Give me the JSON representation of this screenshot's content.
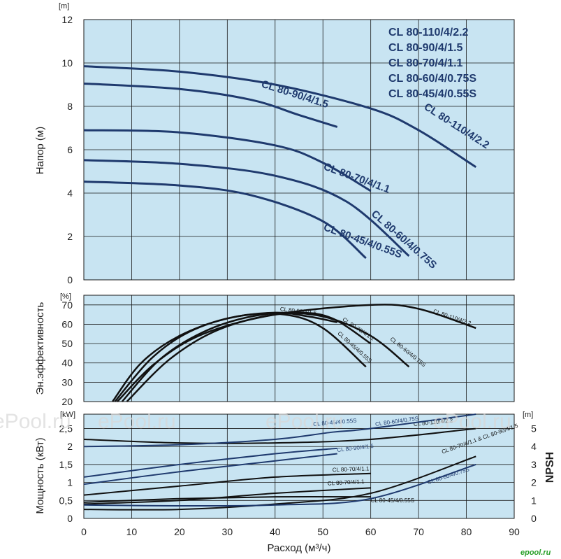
{
  "chart_data": [
    {
      "type": "line",
      "ylabel": "Напор (м)",
      "yunit": "[m]",
      "xlim": [
        0,
        90
      ],
      "ylim": [
        0,
        12
      ],
      "yticks": [
        0,
        2,
        4,
        6,
        8,
        10,
        12
      ],
      "grid": true,
      "legend": [
        "CL 80-110/4/2.2",
        "CL 80-90/4/1.5",
        "CL 80-70/4/1.1",
        "CL 80-60/4/0.75S",
        "CL 80-45/4/0.55S"
      ],
      "legend_position": "top-right",
      "series": [
        {
          "name": "CL 80-110/4/2.2",
          "points": [
            [
              0,
              9.85
            ],
            [
              20,
              9.6
            ],
            [
              40,
              9.0
            ],
            [
              60,
              7.9
            ],
            [
              70,
              6.9
            ],
            [
              82,
              5.2
            ]
          ],
          "label_at": [
            [
              71,
              7.9
            ]
          ]
        },
        {
          "name": "CL 80-90/4/1.5",
          "points": [
            [
              0,
              9.05
            ],
            [
              20,
              8.8
            ],
            [
              35,
              8.3
            ],
            [
              45,
              7.6
            ],
            [
              53,
              7.05
            ]
          ],
          "label_at": [
            [
              37,
              8.9
            ]
          ]
        },
        {
          "name": "CL 80-70/4/1.1",
          "points": [
            [
              0,
              6.9
            ],
            [
              20,
              6.8
            ],
            [
              40,
              6.2
            ],
            [
              50,
              5.4
            ],
            [
              60,
              4.1
            ]
          ],
          "label_at": [
            [
              50,
              5.1
            ]
          ]
        },
        {
          "name": "CL 80-60/4/0.75S",
          "points": [
            [
              0,
              5.52
            ],
            [
              20,
              5.35
            ],
            [
              40,
              4.8
            ],
            [
              55,
              3.6
            ],
            [
              68,
              1.1
            ]
          ],
          "label_at": [
            [
              60,
              3.0
            ]
          ]
        },
        {
          "name": "CL 80-45/4/0.55S",
          "points": [
            [
              0,
              4.53
            ],
            [
              20,
              4.35
            ],
            [
              35,
              3.9
            ],
            [
              50,
              2.7
            ],
            [
              59,
              1.0
            ]
          ],
          "label_at": [
            [
              50,
              2.3
            ]
          ]
        }
      ]
    },
    {
      "type": "line",
      "ylabel": "Эн.эффективность",
      "yunit": "[%]",
      "xlim": [
        0,
        90
      ],
      "ylim": [
        20,
        75
      ],
      "yticks": [
        20,
        30,
        40,
        50,
        60,
        70
      ],
      "grid": true,
      "series": [
        {
          "name": "CL 80-110/4/2.2",
          "points": [
            [
              7,
              20
            ],
            [
              15,
              40
            ],
            [
              25,
              55
            ],
            [
              40,
              65
            ],
            [
              60,
              70
            ],
            [
              70,
              68
            ],
            [
              82,
              58
            ]
          ],
          "label_at": [
            [
              73,
              66
            ]
          ]
        },
        {
          "name": "CL 80-90/4/1.5",
          "points": [
            [
              6,
              20
            ],
            [
              12,
              40
            ],
            [
              20,
              54
            ],
            [
              30,
              63
            ],
            [
              40,
              66
            ],
            [
              47,
              64
            ],
            [
              53,
              61
            ]
          ],
          "label_at": [
            [
              41,
              67
            ]
          ]
        },
        {
          "name": "CL 80-70/4/1.1",
          "points": [
            [
              8,
              20
            ],
            [
              16,
              42
            ],
            [
              25,
              56
            ],
            [
              35,
              64
            ],
            [
              45,
              66
            ],
            [
              52,
              63
            ],
            [
              60,
              50
            ]
          ],
          "label_at": [
            [
              54,
              62
            ]
          ]
        },
        {
          "name": "CL 80-60/4/0.75S",
          "points": [
            [
              9,
              20
            ],
            [
              18,
              42
            ],
            [
              28,
              57
            ],
            [
              40,
              65
            ],
            [
              50,
              64
            ],
            [
              60,
              54
            ],
            [
              68,
              38
            ]
          ],
          "label_at": [
            [
              64,
              52
            ]
          ]
        },
        {
          "name": "CL 80-45/4/0.55S",
          "points": [
            [
              6.5,
              20
            ],
            [
              14,
              42
            ],
            [
              22,
              56
            ],
            [
              32,
              64
            ],
            [
              42,
              65
            ],
            [
              50,
              58
            ],
            [
              59,
              38
            ]
          ],
          "label_at": [
            [
              53,
              55
            ]
          ]
        }
      ]
    },
    {
      "type": "line",
      "ylabel": "Мощность (кВт)",
      "yunit": "[kW]",
      "y2label": "NPSH",
      "y2unit": "[m]",
      "xlim": [
        0,
        90
      ],
      "ylim": [
        0,
        2.9
      ],
      "y2lim": [
        0,
        5.8
      ],
      "yticks": [
        0,
        0.5,
        1,
        1.5,
        2,
        2.5
      ],
      "yticklabels": [
        "0",
        "0,5",
        "1",
        "1,5",
        "2",
        "2,5"
      ],
      "y2ticks": [
        0,
        1,
        2,
        3,
        4,
        5
      ],
      "xticks": [
        0,
        10,
        20,
        30,
        40,
        50,
        60,
        70,
        80,
        90
      ],
      "xlabel": "Расход (м³/ч)",
      "grid": true,
      "power_series": [
        {
          "name": "CL 80-110/4/2.2",
          "points": [
            [
              0,
              2.2
            ],
            [
              20,
              2.1
            ],
            [
              40,
              2.1
            ],
            [
              60,
              2.2
            ],
            [
              82,
              2.5
            ]
          ],
          "label_at": [
            [
              69,
              2.57
            ]
          ]
        },
        {
          "name": "CL 80-60/4/0.75S",
          "points": [
            [
              0,
              2.0
            ],
            [
              20,
              2.05
            ],
            [
              40,
              2.2
            ],
            [
              52,
              2.4
            ],
            [
              60,
              2.5
            ],
            [
              82,
              2.9
            ]
          ],
          "label_at": [
            [
              61,
              2.57
            ]
          ]
        },
        {
          "name": "CL 80-45/4/0.55S",
          "points": [
            [
              0,
              0.45
            ],
            [
              20,
              0.55
            ],
            [
              40,
              0.6
            ],
            [
              60,
              0.6
            ]
          ],
          "label_at": [
            [
              60,
              0.45
            ]
          ]
        },
        {
          "name": "CL 80-90/4/1.5",
          "points": [
            [
              0,
              0.95
            ],
            [
              20,
              1.3
            ],
            [
              40,
              1.6
            ],
            [
              53,
              1.8
            ]
          ],
          "label_at": [
            [
              53,
              1.85
            ]
          ]
        },
        {
          "name": "CL 80-70/4/1.1",
          "points": [
            [
              0,
              0.65
            ],
            [
              20,
              0.9
            ],
            [
              40,
              1.15
            ],
            [
              60,
              1.25
            ]
          ],
          "label_at": [
            [
              52,
              1.3
            ]
          ]
        },
        {
          "name": "CL 80-45/4/0.55S",
          "points": [
            [
              0,
              1.15
            ],
            [
              20,
              1.5
            ],
            [
              40,
              1.8
            ],
            [
              53,
              1.95
            ]
          ],
          "label_at": [
            [
              48,
              2.57
            ]
          ]
        },
        {
          "name": "CL 80-70/4/1.1",
          "points": [
            [
              0,
              0.4
            ],
            [
              20,
              0.5
            ],
            [
              40,
              0.7
            ],
            [
              60,
              0.85
            ]
          ],
          "label_at": [
            [
              51,
              0.92
            ]
          ]
        }
      ],
      "npsh_series": [
        {
          "name": "CL 80-70/4/1.1 & CL 80-90/4/1.5",
          "points": [
            [
              0,
              0.5
            ],
            [
              20,
              0.5
            ],
            [
              40,
              0.8
            ],
            [
              60,
              1.4
            ],
            [
              82,
              3.45
            ]
          ],
          "label_at": [
            [
              75,
              3.6
            ]
          ]
        },
        {
          "name": "CL 80-60/4/0.75S",
          "points": [
            [
              0,
              0.75
            ],
            [
              20,
              0.7
            ],
            [
              40,
              0.75
            ],
            [
              60,
              1.1
            ],
            [
              82,
              3.0
            ]
          ],
          "label_at": [
            [
              72,
              1.9
            ]
          ]
        }
      ]
    }
  ],
  "watermarks": [
    "ePool.ru",
    "ePool.ru",
    "ePool.ru",
    "ePool.ru",
    "ePool.ru"
  ],
  "logo_text": "epool.ru",
  "colors": {
    "plot_bg": "#c8e4f2",
    "grid": "#1a1a1a",
    "dark_curve": "#111111",
    "blue_curve": "#1f3a6e",
    "legend_text": "#1f3a6e"
  }
}
